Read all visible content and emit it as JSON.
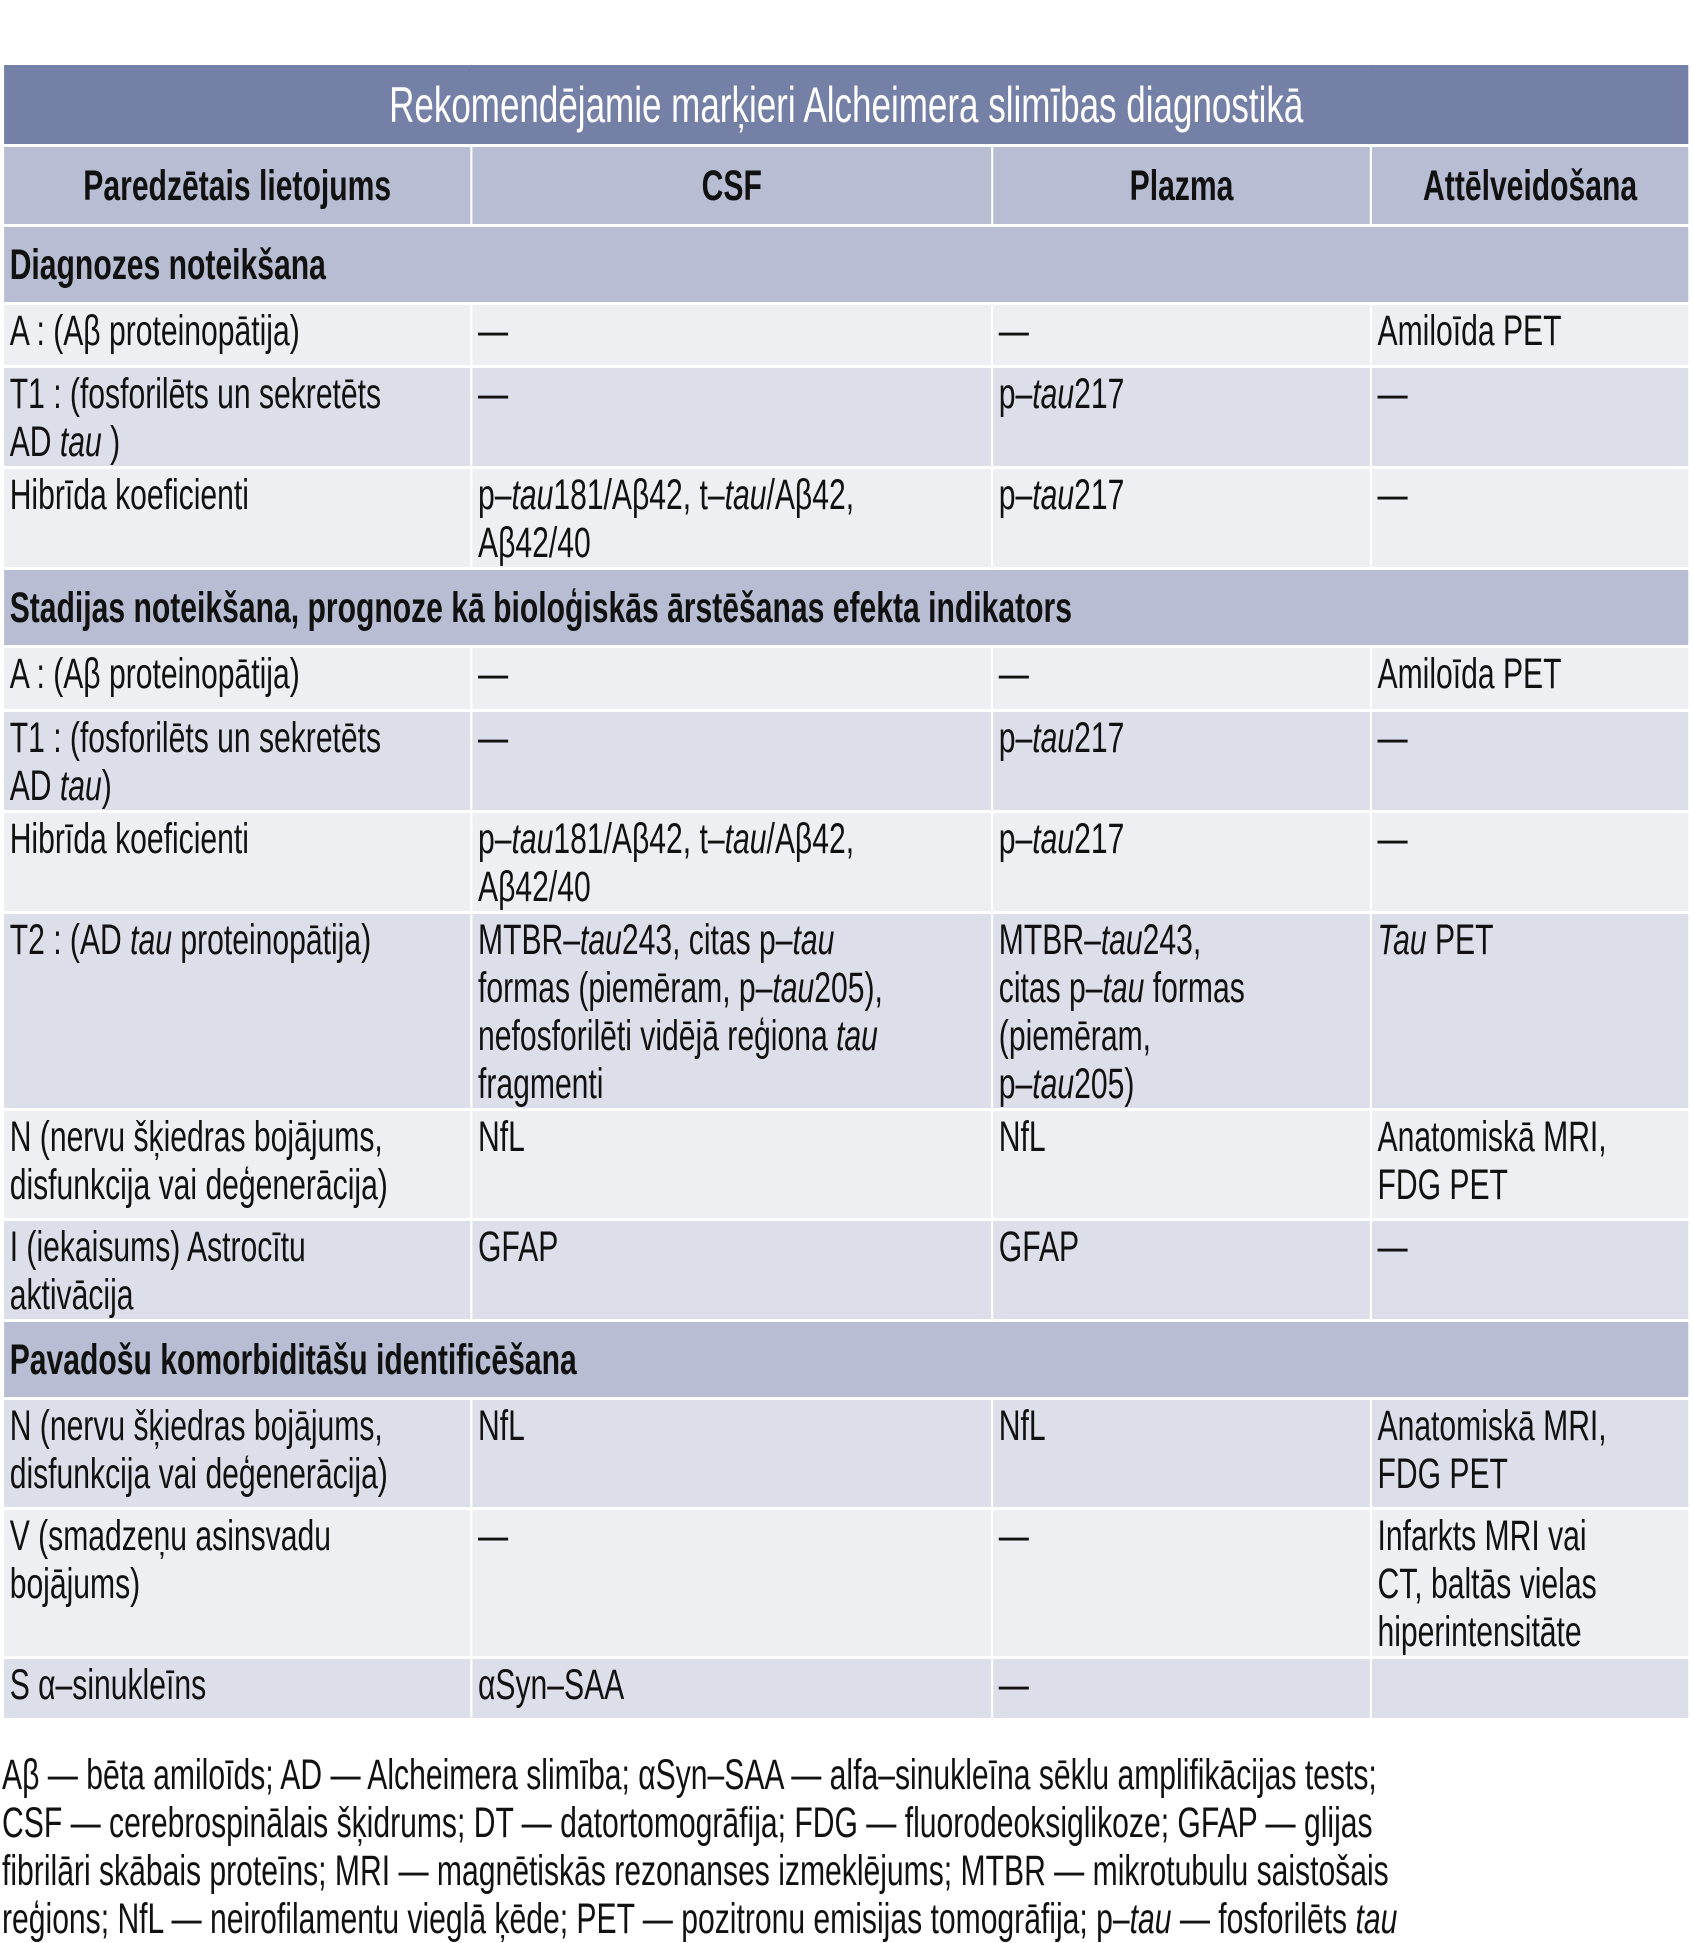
{
  "table": {
    "title": "Rekomendējamie marķieri Alcheimera slimības diagnostikā",
    "headers": [
      "Paredzētais lietojums",
      "CSF",
      "Plazma",
      "Attēlveidošana"
    ],
    "rows": [
      {
        "section": "Diagnozes noteikšana"
      },
      {
        "shade": "light",
        "cells": [
          [
            "A : (Aβ proteinopātija)"
          ],
          [
            "—"
          ],
          [
            "—"
          ],
          [
            "Amiloīda PET"
          ]
        ]
      },
      {
        "shade": "dark",
        "cells": [
          [
            "T1 : (fosforilēts un sekretēts\nAD ",
            {
              "i": "tau"
            },
            " )"
          ],
          [
            "—"
          ],
          [
            "p–",
            {
              "i": "tau"
            },
            "217"
          ],
          [
            "—"
          ]
        ]
      },
      {
        "shade": "light",
        "cells": [
          [
            "Hibrīda koeficienti"
          ],
          [
            "p–",
            {
              "i": "tau"
            },
            "181/Aβ42, t–",
            {
              "i": "tau"
            },
            "/Aβ42,\nAβ42/40"
          ],
          [
            "p–",
            {
              "i": "tau"
            },
            "217"
          ],
          [
            "—"
          ]
        ]
      },
      {
        "section": "Stadijas noteikšana, prognoze kā bioloģiskās ārstēšanas efekta indikators"
      },
      {
        "shade": "light",
        "cells": [
          [
            "A : (Aβ proteinopātija)"
          ],
          [
            "—"
          ],
          [
            "—"
          ],
          [
            "Amiloīda PET"
          ]
        ]
      },
      {
        "shade": "dark",
        "cells": [
          [
            "T1 : (fosforilēts un sekretēts\nAD ",
            {
              "i": "tau"
            },
            ")"
          ],
          [
            "—"
          ],
          [
            "p–",
            {
              "i": "tau"
            },
            "217"
          ],
          [
            "—"
          ]
        ]
      },
      {
        "shade": "light",
        "cells": [
          [
            "Hibrīda koeficienti"
          ],
          [
            "p–",
            {
              "i": "tau"
            },
            "181/Aβ42, t–",
            {
              "i": "tau"
            },
            "/Aβ42,\nAβ42/40"
          ],
          [
            "p–",
            {
              "i": "tau"
            },
            "217"
          ],
          [
            "—"
          ]
        ]
      },
      {
        "shade": "dark",
        "cells": [
          [
            "T2 : (AD ",
            {
              "i": "tau"
            },
            " proteinopātija)"
          ],
          [
            "MTBR–",
            {
              "i": "tau"
            },
            "243, citas p–",
            {
              "i": "tau"
            },
            "\nformas (piemēram, p–",
            {
              "i": "tau"
            },
            "205),\nnefosforilēti vidējā reģiona ",
            {
              "i": "tau"
            },
            "\nfragmenti"
          ],
          [
            "MTBR–",
            {
              "i": "tau"
            },
            "243,\ncitas p–",
            {
              "i": "tau"
            },
            " formas\n(piemēram,\np–",
            {
              "i": "tau"
            },
            "205)"
          ],
          [
            {
              "i": "Tau"
            },
            " PET"
          ]
        ]
      },
      {
        "shade": "light",
        "cells": [
          [
            "N (nervu šķiedras bojājums,\ndisfunkcija vai deģenerācija)"
          ],
          [
            "NfL"
          ],
          [
            "NfL"
          ],
          [
            "Anatomiskā MRI,\nFDG PET"
          ]
        ]
      },
      {
        "shade": "dark",
        "cells": [
          [
            "I (iekaisums) Astrocītu\naktivācija"
          ],
          [
            "GFAP"
          ],
          [
            "GFAP"
          ],
          [
            "—"
          ]
        ]
      },
      {
        "section": "Pavadošu komorbiditāšu identificēšana"
      },
      {
        "shade": "dark",
        "cells": [
          [
            "N (nervu šķiedras bojājums,\ndisfunkcija vai deģenerācija)"
          ],
          [
            "NfL"
          ],
          [
            "NfL"
          ],
          [
            "Anatomiskā MRI,\nFDG PET"
          ]
        ]
      },
      {
        "shade": "light",
        "cells": [
          [
            "V (smadzeņu asinsvadu\nbojājums)"
          ],
          [
            "—"
          ],
          [
            "—"
          ],
          [
            "Infarkts MRI vai\nCT, baltās vielas\nhiperintensitāte"
          ]
        ]
      },
      {
        "shade": "dark",
        "cells": [
          [
            "S α–sinukleīns"
          ],
          [
            "αSyn–SAA"
          ],
          [
            "—"
          ],
          [
            ""
          ]
        ]
      }
    ]
  },
  "footnote": [
    [
      "Aβ — bēta amiloīds; AD — Alcheimera slimība; αSyn–SAA — alfa–sinukleīna sēklu amplifikācijas tests;"
    ],
    [
      "CSF — cerebrospinālais šķidrums; DT — datortomogrāfija; FDG — fluorodeoksiglikoze; GFAP — glijas"
    ],
    [
      "fibrilāri skābais proteīns; MRI — magnētiskās rezonanses izmeklējums; MTBR — mikrotubulu saistošais"
    ],
    [
      "reģions; NfL — neirofilamentu vieglā ķēde; PET — pozitronu emisijas tomogrāfija; p–",
      {
        "i": "tau"
      },
      " — fosforilēts ",
      {
        "i": "tau"
      }
    ]
  ]
}
